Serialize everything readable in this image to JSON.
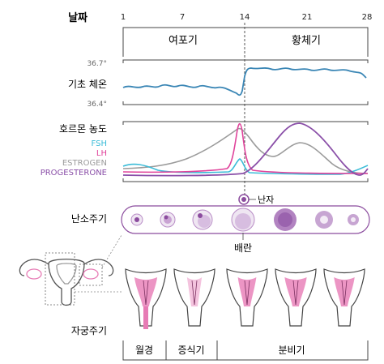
{
  "header": {
    "day_label": "날짜",
    "ticks": [
      "1",
      "7",
      "14",
      "21",
      "28"
    ]
  },
  "phases": {
    "follicular": "여포기",
    "luteal": "황체기"
  },
  "bbt": {
    "label": "기초 체온",
    "high": "36.7°",
    "low": "36.4°"
  },
  "hormones": {
    "label": "호르몬 농도",
    "legend": [
      {
        "name": "FSH",
        "color": "#3bbcd8"
      },
      {
        "name": "LH",
        "color": "#e0439b"
      },
      {
        "name": "ESTROGEN",
        "color": "#9b9b9b"
      },
      {
        "name": "PROGESTERONE",
        "color": "#8a4fa8"
      }
    ]
  },
  "ovary": {
    "label": "난소주기",
    "egg_label": "난자",
    "ovulation_label": "배란"
  },
  "uterus": {
    "label": "자궁주기",
    "phases": [
      "월경",
      "증식기",
      "분비기"
    ]
  },
  "colors": {
    "bbt_line": "#3a86b5",
    "grid": "#d9d9d9",
    "follicle_light": "#efe6f2",
    "follicle_mid": "#c9a3d3",
    "follicle_dark": "#8b4c9e",
    "endometrium": "#e77bb5"
  }
}
